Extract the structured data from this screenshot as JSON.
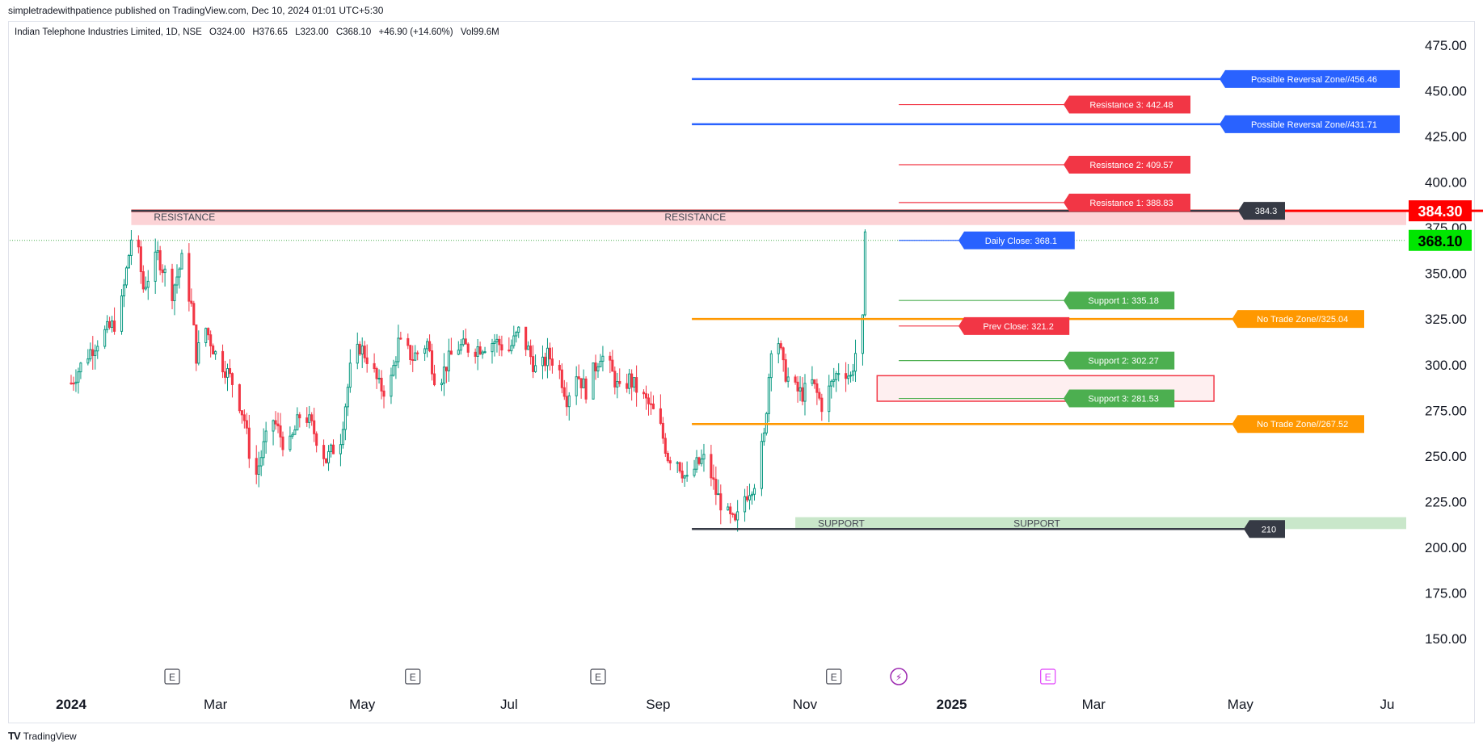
{
  "header": {
    "publisher": "simpletradewithpatience published on TradingView.com, Dec 10, 2024 01:01 UTC+5:30"
  },
  "legend": {
    "symbol": "Indian Telephone Industries Limited, 1D, NSE",
    "open": "O324.00",
    "high": "H376.65",
    "low": "L323.00",
    "close": "C368.10",
    "change": "+46.90 (+14.60%)",
    "volume": "Vol99.6M"
  },
  "footer": {
    "logo": "TV",
    "brand": "TradingView"
  },
  "colors": {
    "up": "#089981",
    "down": "#f23645",
    "blue": "#2962ff",
    "red": "#f23645",
    "orange": "#ff9800",
    "green": "#4caf50",
    "dark": "#363a45",
    "current_price_bg": "#00e600",
    "high_bg": "#ff0000"
  },
  "chart_data": {
    "type": "candlestick",
    "ylim": [
      125,
      485
    ],
    "yticks": [
      "150.00",
      "175.00",
      "200.00",
      "225.00",
      "250.00",
      "275.00",
      "300.00",
      "325.00",
      "350.00",
      "375.00",
      "400.00",
      "425.00",
      "450.00",
      "475.00"
    ],
    "ytick_values": [
      150,
      175,
      200,
      225,
      250,
      275,
      300,
      325,
      350,
      375,
      400,
      425,
      450,
      475
    ],
    "x_labels": [
      {
        "label": "2024",
        "date": "2024-01-01",
        "bold": true
      },
      {
        "label": "Mar",
        "date": "2024-03-01",
        "bold": false
      },
      {
        "label": "May",
        "date": "2024-05-01",
        "bold": false
      },
      {
        "label": "Jul",
        "date": "2024-07-01",
        "bold": false
      },
      {
        "label": "Sep",
        "date": "2024-09-01",
        "bold": false
      },
      {
        "label": "Nov",
        "date": "2024-11-01",
        "bold": false
      },
      {
        "label": "2025",
        "date": "2025-01-01",
        "bold": true
      },
      {
        "label": "Mar",
        "date": "2025-03-01",
        "bold": false
      },
      {
        "label": "May",
        "date": "2025-05-01",
        "bold": false
      },
      {
        "label": "Ju",
        "date": "2025-07-01",
        "bold": false
      }
    ],
    "xlim": [
      "2023-12-15",
      "2025-07-01"
    ],
    "earnings_markers": [
      {
        "date": "2024-02-12",
        "label": "E",
        "color": "#434651"
      },
      {
        "date": "2024-05-22",
        "label": "E",
        "color": "#434651"
      },
      {
        "date": "2024-08-07",
        "label": "E",
        "color": "#434651"
      },
      {
        "date": "2024-11-13",
        "label": "E",
        "color": "#434651"
      },
      {
        "date": "2024-12-10",
        "label": "⚡",
        "color": "#9c27b0"
      },
      {
        "date": "2025-02-10",
        "label": "E",
        "color": "#e040fb"
      }
    ],
    "horizontal_lines": [
      {
        "label": "Possible Reversal Zone//456.46",
        "value": 456.46,
        "color": "#2962ff",
        "start": "2024-09-15",
        "width": 3
      },
      {
        "label": "Resistance 3: 442.48",
        "value": 442.48,
        "color": "#f23645",
        "start": "2024-12-10",
        "width": 1
      },
      {
        "label": "Possible Reversal Zone//431.71",
        "value": 431.71,
        "color": "#2962ff",
        "start": "2024-09-15",
        "width": 3
      },
      {
        "label": "Resistance 2: 409.57",
        "value": 409.57,
        "color": "#f23645",
        "start": "2024-12-10",
        "width": 1
      },
      {
        "label": "Resistance 1: 388.83",
        "value": 388.83,
        "color": "#f23645",
        "start": "2024-12-10",
        "width": 1
      },
      {
        "label": "384.3",
        "value": 384.3,
        "color": "#363a45",
        "start": "2024-01-26",
        "width": 3
      },
      {
        "label": "Daily Close: 368.1",
        "value": 368.1,
        "color": "#2962ff",
        "start": "2024-12-10",
        "width": 1
      },
      {
        "label": "Support 1: 335.18",
        "value": 335.18,
        "color": "#4caf50",
        "start": "2024-12-10",
        "width": 1
      },
      {
        "label": "No Trade Zone//325.04",
        "value": 325.04,
        "color": "#ff9800",
        "start": "2024-09-15",
        "width": 3
      },
      {
        "label": "Prev Close: 321.2",
        "value": 321.2,
        "color": "#f23645",
        "start": "2024-12-10",
        "width": 1
      },
      {
        "label": "Support 2: 302.27",
        "value": 302.27,
        "color": "#4caf50",
        "start": "2024-12-10",
        "width": 1
      },
      {
        "label": "Support 3: 281.53",
        "value": 281.53,
        "color": "#4caf50",
        "start": "2024-12-10",
        "width": 1
      },
      {
        "label": "No Trade Zone//267.52",
        "value": 267.52,
        "color": "#ff9800",
        "start": "2024-09-15",
        "width": 3
      },
      {
        "label": "210",
        "value": 210,
        "color": "#363a45",
        "start": "2024-09-15",
        "width": 3
      }
    ],
    "zones": [
      {
        "label": "RESISTANCE",
        "label2": "RESISTANCE",
        "top": 384.3,
        "bottom": 376.5,
        "start": "2024-01-26",
        "fill": "rgba(242,54,69,0.22)",
        "border": "#ff0000"
      },
      {
        "label": "SUPPORT",
        "label2": "SUPPORT",
        "top": 216.5,
        "bottom": 210,
        "start": "2024-10-28",
        "fill": "rgba(76,175,80,0.3)",
        "border": ""
      }
    ],
    "box": {
      "top": 294,
      "bottom": 280,
      "start": "2024-12-01",
      "end": "2025-04-20",
      "fill": "rgba(242,54,69,0.08)",
      "border": "#f23645"
    },
    "price_badges": [
      {
        "label": "384.30",
        "value": 384.3,
        "color": "#ff0000"
      },
      {
        "label": "368.10",
        "value": 368.1,
        "color": "#00e600"
      }
    ],
    "candles": {
      "start": "2024-01-01",
      "step_days": 1,
      "base": 290,
      "path": [
        [
          0,
          290
        ],
        [
          6,
          304
        ],
        [
          12,
          315
        ],
        [
          20,
          325
        ],
        [
          26,
          378
        ],
        [
          30,
          342
        ],
        [
          36,
          360
        ],
        [
          42,
          340
        ],
        [
          46,
          357
        ],
        [
          50,
          332
        ],
        [
          52,
          305
        ],
        [
          56,
          320
        ],
        [
          60,
          306
        ],
        [
          64,
          298
        ],
        [
          68,
          288
        ],
        [
          72,
          270
        ],
        [
          76,
          235
        ],
        [
          80,
          255
        ],
        [
          84,
          270
        ],
        [
          90,
          252
        ],
        [
          96,
          276
        ],
        [
          100,
          266
        ],
        [
          106,
          248
        ],
        [
          112,
          260
        ],
        [
          116,
          297
        ],
        [
          120,
          310
        ],
        [
          124,
          302
        ],
        [
          128,
          288
        ],
        [
          132,
          285
        ],
        [
          136,
          312
        ],
        [
          142,
          304
        ],
        [
          148,
          312
        ],
        [
          152,
          288
        ],
        [
          156,
          300
        ],
        [
          160,
          310
        ],
        [
          168,
          309
        ],
        [
          176,
          313
        ],
        [
          182,
          308
        ],
        [
          186,
          318
        ],
        [
          190,
          308
        ],
        [
          194,
          294
        ],
        [
          198,
          305
        ],
        [
          202,
          301
        ],
        [
          206,
          282
        ],
        [
          210,
          296
        ],
        [
          214,
          286
        ],
        [
          220,
          306
        ],
        [
          224,
          298
        ],
        [
          228,
          285
        ],
        [
          232,
          292
        ],
        [
          236,
          285
        ],
        [
          240,
          278
        ],
        [
          244,
          270
        ],
        [
          248,
          250
        ],
        [
          252,
          248
        ],
        [
          256,
          236
        ],
        [
          260,
          245
        ],
        [
          264,
          249
        ],
        [
          268,
          230
        ],
        [
          272,
          219
        ],
        [
          276,
          212
        ],
        [
          280,
          228
        ],
        [
          284,
          236
        ],
        [
          288,
          260
        ],
        [
          292,
          328
        ],
        [
          296,
          298
        ],
        [
          300,
          287
        ],
        [
          304,
          284
        ],
        [
          308,
          290
        ],
        [
          312,
          278
        ],
        [
          316,
          289
        ],
        [
          320,
          300
        ],
        [
          324,
          293
        ],
        [
          328,
          320
        ],
        [
          329,
          323
        ],
        [
          330,
          368
        ]
      ],
      "seed": 7
    }
  }
}
